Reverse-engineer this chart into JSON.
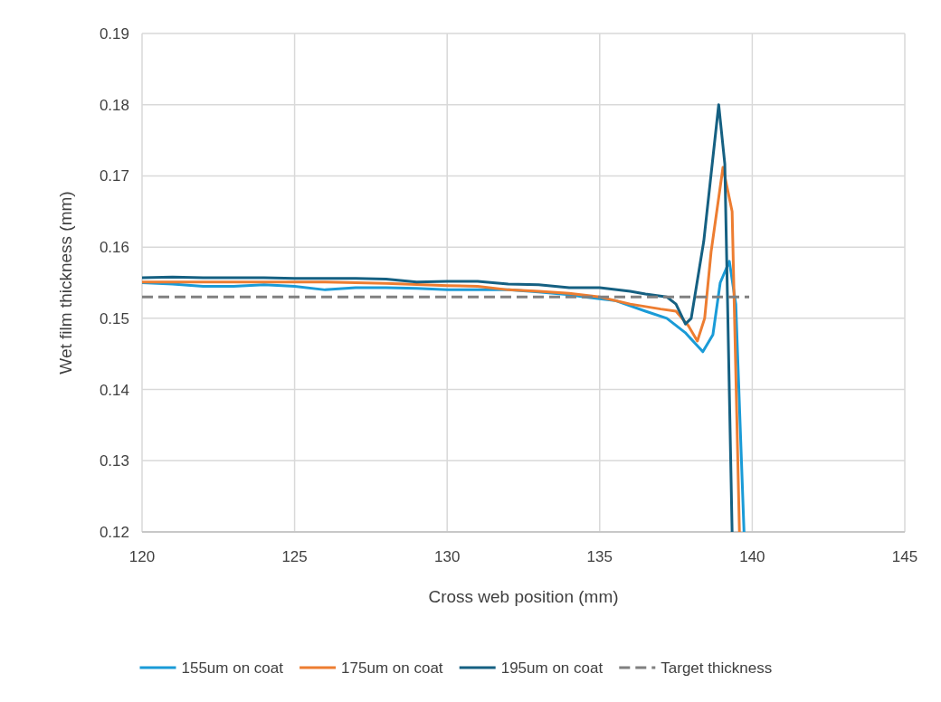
{
  "chart_data": {
    "type": "line",
    "xlabel": "Cross web position (mm)",
    "ylabel": "Wet film thickness (mm)",
    "xlim": [
      120,
      145
    ],
    "xticks": [
      120,
      125,
      130,
      135,
      140,
      145
    ],
    "ylim": [
      0.12,
      0.19
    ],
    "yticks": [
      0.12,
      0.13,
      0.14,
      0.15,
      0.16,
      0.17,
      0.18,
      0.19
    ],
    "grid": true,
    "legend": "bottom",
    "series": [
      {
        "name": "155um on coat",
        "color": "#1a9bd7",
        "x": [
          120,
          121,
          122,
          123,
          124,
          125,
          126,
          127,
          128,
          129,
          130,
          131,
          132,
          133,
          134,
          134.5,
          135.5,
          136.5,
          137.2,
          137.8,
          138.38,
          138.71,
          138.95,
          139.25,
          139.46,
          139.73
        ],
        "values": [
          0.155,
          0.1548,
          0.1545,
          0.1545,
          0.1547,
          0.1545,
          0.154,
          0.1543,
          0.1543,
          0.1542,
          0.154,
          0.154,
          0.154,
          0.1537,
          0.1533,
          0.153,
          0.1525,
          0.151,
          0.15,
          0.148,
          0.1453,
          0.1477,
          0.155,
          0.158,
          0.152,
          0.12
        ]
      },
      {
        "name": "175um on coat",
        "color": "#ed7d31",
        "x": [
          120,
          122,
          124,
          126,
          128,
          130,
          131,
          132,
          133,
          134,
          135,
          136,
          137,
          137.5,
          137.9,
          138.2,
          138.44,
          138.65,
          139.04,
          139.34,
          139.58
        ],
        "values": [
          0.1551,
          0.1551,
          0.1551,
          0.1551,
          0.1549,
          0.1546,
          0.1545,
          0.154,
          0.1538,
          0.1535,
          0.153,
          0.152,
          0.1513,
          0.151,
          0.149,
          0.1468,
          0.15,
          0.1593,
          0.1712,
          0.165,
          0.12
        ]
      },
      {
        "name": "195um on coat",
        "color": "#156082",
        "x": [
          120,
          121,
          122,
          123,
          124,
          125,
          126,
          127,
          128,
          129,
          130,
          131,
          132,
          133,
          134,
          135,
          136,
          136.5,
          137.2,
          137.5,
          137.81,
          138.0,
          138.41,
          138.9,
          139.1,
          139.34
        ],
        "values": [
          0.1557,
          0.1558,
          0.1557,
          0.1557,
          0.1557,
          0.1556,
          0.1556,
          0.1556,
          0.1555,
          0.1551,
          0.1552,
          0.1552,
          0.1548,
          0.1547,
          0.1543,
          0.1543,
          0.1538,
          0.1534,
          0.153,
          0.152,
          0.1492,
          0.15,
          0.1608,
          0.18,
          0.1717,
          0.12
        ]
      },
      {
        "name": "Target thickness",
        "color": "#808080",
        "line_style": "dashed",
        "x": [
          120,
          139.9
        ],
        "values": [
          0.153,
          0.153
        ]
      }
    ]
  }
}
